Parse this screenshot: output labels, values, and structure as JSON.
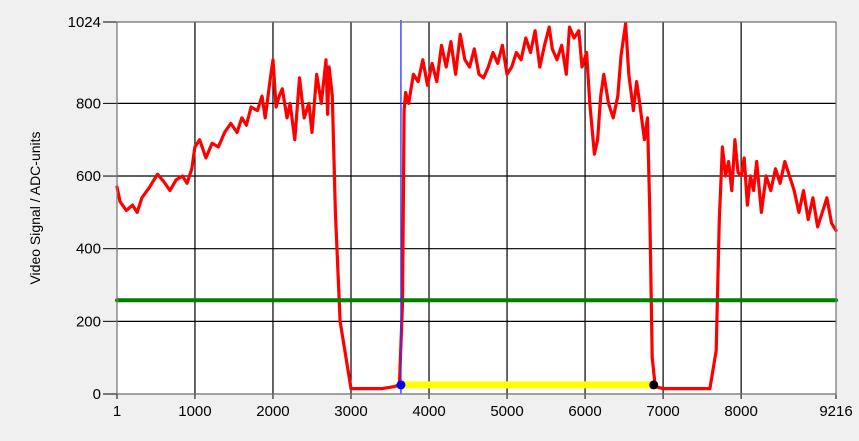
{
  "chart_data": {
    "type": "line",
    "title": "",
    "xlabel": "",
    "ylabel": "Video Signal / ADC-units",
    "xlim": [
      1,
      9216
    ],
    "ylim": [
      0,
      1024
    ],
    "x_ticks": [
      {
        "value": 1,
        "label": "1"
      },
      {
        "value": 1000,
        "label": "1000"
      },
      {
        "value": 2000,
        "label": "2000"
      },
      {
        "value": 3000,
        "label": "3000"
      },
      {
        "value": 4000,
        "label": "4000"
      },
      {
        "value": 5000,
        "label": "5000"
      },
      {
        "value": 6000,
        "label": "6000"
      },
      {
        "value": 7000,
        "label": "7000"
      },
      {
        "value": 8000,
        "label": "8000"
      },
      {
        "value": 9216,
        "label": "9216"
      }
    ],
    "y_ticks": [
      {
        "value": 0,
        "label": "0"
      },
      {
        "value": 200,
        "label": "200"
      },
      {
        "value": 400,
        "label": "400"
      },
      {
        "value": 600,
        "label": "600"
      },
      {
        "value": 800,
        "label": "800"
      },
      {
        "value": 1024,
        "label": "1024"
      }
    ],
    "grid": true,
    "legend": "none",
    "colors": {
      "signal": "#ff0000",
      "threshold": "#008000",
      "cursor": "#3030ff",
      "segment": "#ffff00",
      "start_marker": "#0000ff",
      "end_marker": "#000000",
      "plot_bg": "#ffffff",
      "grid": "#000000"
    },
    "series": [
      {
        "color": "#ff0000",
        "x": [
          1,
          40,
          120,
          200,
          260,
          320,
          420,
          520,
          600,
          680,
          760,
          840,
          900,
          960,
          1000,
          1060,
          1140,
          1220,
          1300,
          1380,
          1460,
          1540,
          1600,
          1660,
          1720,
          1800,
          1860,
          1900,
          1960,
          2000,
          2040,
          2080,
          2120,
          2180,
          2220,
          2280,
          2340,
          2400,
          2460,
          2500,
          2560,
          2620,
          2680,
          2700,
          2720,
          2760,
          2800,
          2860,
          3000,
          3200,
          3400,
          3550,
          3620,
          3660,
          3680,
          3700,
          3740,
          3800,
          3860,
          3920,
          3980,
          4040,
          4100,
          4160,
          4220,
          4280,
          4340,
          4400,
          4460,
          4520,
          4580,
          4640,
          4700,
          4760,
          4820,
          4880,
          4940,
          5000,
          5060,
          5120,
          5180,
          5240,
          5300,
          5360,
          5420,
          5480,
          5540,
          5580,
          5640,
          5700,
          5760,
          5800,
          5860,
          5920,
          5960,
          6020,
          6060,
          6120,
          6160,
          6200,
          6240,
          6300,
          6360,
          6420,
          6460,
          6520,
          6560,
          6620,
          6660,
          6700,
          6760,
          6800,
          6830,
          6860,
          6900,
          7000,
          7200,
          7400,
          7600,
          7680,
          7720,
          7760,
          7800,
          7840,
          7880,
          7920,
          7960,
          8000,
          8040,
          8080,
          8120,
          8160,
          8200,
          8260,
          8320,
          8380,
          8440,
          8500,
          8560,
          8620,
          8680,
          8740,
          8800,
          8860,
          8920,
          8980,
          9040,
          9100,
          9160,
          9216
        ],
        "y": [
          570,
          530,
          505,
          520,
          500,
          540,
          570,
          605,
          585,
          560,
          590,
          600,
          580,
          620,
          680,
          700,
          650,
          690,
          680,
          720,
          745,
          720,
          760,
          740,
          790,
          780,
          820,
          760,
          860,
          920,
          790,
          820,
          840,
          760,
          800,
          700,
          870,
          760,
          800,
          720,
          880,
          800,
          920,
          770,
          900,
          820,
          500,
          200,
          15,
          15,
          15,
          20,
          25,
          250,
          780,
          830,
          800,
          880,
          860,
          920,
          850,
          910,
          860,
          960,
          900,
          970,
          880,
          990,
          920,
          900,
          950,
          880,
          870,
          900,
          940,
          910,
          960,
          880,
          900,
          940,
          920,
          980,
          940,
          1000,
          900,
          960,
          1010,
          950,
          920,
          960,
          880,
          1010,
          980,
          1000,
          900,
          940,
          800,
          660,
          700,
          820,
          880,
          800,
          760,
          820,
          930,
          1020,
          880,
          780,
          860,
          800,
          700,
          760,
          500,
          100,
          20,
          15,
          15,
          15,
          15,
          120,
          480,
          680,
          600,
          640,
          560,
          700,
          610,
          600,
          650,
          520,
          600,
          560,
          640,
          500,
          600,
          560,
          620,
          580,
          640,
          600,
          560,
          500,
          560,
          480,
          540,
          460,
          500,
          540,
          470,
          450
        ]
      },
      {
        "color": "#008000",
        "x": [
          1,
          9216
        ],
        "y": [
          258,
          258
        ]
      }
    ],
    "cursor_x": 3640,
    "segment": {
      "x_start": 3640,
      "x_end": 6880,
      "y": 25
    },
    "markers": [
      {
        "x": 3640,
        "y": 25,
        "color": "#0000ff"
      },
      {
        "x": 6880,
        "y": 25,
        "color": "#000000"
      }
    ]
  }
}
